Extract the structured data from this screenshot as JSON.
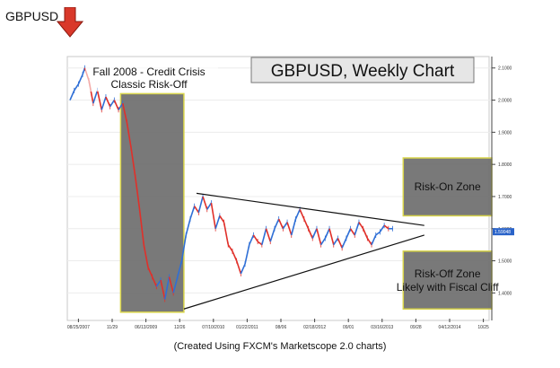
{
  "header": {
    "symbol": "GBPUSD",
    "arrow_color": "#d9382a"
  },
  "caption": "(Created Using FXCM's Marketscope 2.0 charts)",
  "chart_data": {
    "type": "line",
    "title": "GBPUSD, Weekly Chart",
    "ylim": [
      1.32,
      2.13
    ],
    "yticks": [
      "2.1000",
      "2.0000",
      "1.9000",
      "1.8000",
      "1.7000",
      "1.6000",
      "1.5000",
      "1.4000"
    ],
    "ytick_values": [
      2.1,
      2.0,
      1.9,
      1.8,
      1.7,
      1.6,
      1.5,
      1.4
    ],
    "last_price": "1.59048",
    "xticks": [
      "08/25/2007",
      "11/29",
      "06/13/2009",
      "12/26",
      "07/10/2010",
      "01/22/2011",
      "08/06",
      "02/18/2012",
      "09/01",
      "03/16/2013",
      "09/28",
      "04/12/2014",
      "10/25"
    ],
    "annotations": {
      "crisis_line1": "Fall 2008 - Credit Crisis",
      "crisis_line2": "Classic Risk-Off",
      "risk_on": "Risk-On Zone",
      "risk_off_line1": "Risk-Off Zone",
      "risk_off_line2": "Likely with Fiscal Cliff"
    },
    "zones": {
      "crisis": {
        "x_start": 0.12,
        "x_end": 0.27,
        "y_low": 1.34,
        "y_high": 2.02
      },
      "risk_on": {
        "x_start": 0.79,
        "x_end": 1.0,
        "y_low": 1.64,
        "y_high": 1.82
      },
      "risk_off": {
        "x_start": 0.79,
        "x_end": 1.0,
        "y_low": 1.35,
        "y_high": 1.53
      }
    },
    "triangle": {
      "upper": [
        [
          0.3,
          1.71
        ],
        [
          0.84,
          1.61
        ]
      ],
      "lower": [
        [
          0.27,
          1.35
        ],
        [
          0.84,
          1.58
        ]
      ]
    },
    "series": [
      {
        "values": [
          [
            0.0,
            2.0
          ],
          [
            0.01,
            2.03
          ],
          [
            0.02,
            2.05
          ],
          [
            0.03,
            2.08
          ],
          [
            0.035,
            2.1
          ],
          [
            0.045,
            2.06
          ],
          [
            0.055,
            1.99
          ],
          [
            0.065,
            2.03
          ],
          [
            0.075,
            1.97
          ],
          [
            0.085,
            2.01
          ],
          [
            0.095,
            1.98
          ],
          [
            0.105,
            2.0
          ],
          [
            0.115,
            1.97
          ],
          [
            0.125,
            1.99
          ],
          [
            0.135,
            1.93
          ],
          [
            0.145,
            1.85
          ],
          [
            0.155,
            1.76
          ],
          [
            0.165,
            1.66
          ],
          [
            0.175,
            1.55
          ],
          [
            0.185,
            1.48
          ],
          [
            0.195,
            1.45
          ],
          [
            0.205,
            1.42
          ],
          [
            0.215,
            1.44
          ],
          [
            0.225,
            1.38
          ],
          [
            0.235,
            1.45
          ],
          [
            0.245,
            1.4
          ],
          [
            0.255,
            1.45
          ],
          [
            0.265,
            1.5
          ],
          [
            0.275,
            1.58
          ],
          [
            0.285,
            1.63
          ],
          [
            0.295,
            1.67
          ],
          [
            0.305,
            1.65
          ],
          [
            0.315,
            1.7
          ],
          [
            0.325,
            1.66
          ],
          [
            0.335,
            1.68
          ],
          [
            0.345,
            1.6
          ],
          [
            0.355,
            1.64
          ],
          [
            0.365,
            1.62
          ],
          [
            0.375,
            1.55
          ],
          [
            0.385,
            1.53
          ],
          [
            0.395,
            1.5
          ],
          [
            0.405,
            1.46
          ],
          [
            0.415,
            1.49
          ],
          [
            0.425,
            1.55
          ],
          [
            0.435,
            1.58
          ],
          [
            0.445,
            1.56
          ],
          [
            0.455,
            1.55
          ],
          [
            0.465,
            1.6
          ],
          [
            0.475,
            1.56
          ],
          [
            0.485,
            1.6
          ],
          [
            0.495,
            1.63
          ],
          [
            0.505,
            1.6
          ],
          [
            0.515,
            1.62
          ],
          [
            0.525,
            1.58
          ],
          [
            0.535,
            1.63
          ],
          [
            0.545,
            1.66
          ],
          [
            0.555,
            1.63
          ],
          [
            0.565,
            1.6
          ],
          [
            0.575,
            1.57
          ],
          [
            0.585,
            1.6
          ],
          [
            0.595,
            1.55
          ],
          [
            0.605,
            1.57
          ],
          [
            0.615,
            1.6
          ],
          [
            0.625,
            1.55
          ],
          [
            0.635,
            1.57
          ],
          [
            0.645,
            1.54
          ],
          [
            0.655,
            1.57
          ],
          [
            0.665,
            1.6
          ],
          [
            0.675,
            1.58
          ],
          [
            0.685,
            1.62
          ],
          [
            0.695,
            1.6
          ],
          [
            0.705,
            1.57
          ],
          [
            0.715,
            1.55
          ],
          [
            0.725,
            1.58
          ],
          [
            0.735,
            1.59
          ],
          [
            0.745,
            1.61
          ],
          [
            0.755,
            1.6
          ],
          [
            0.765,
            1.6
          ]
        ]
      }
    ]
  }
}
